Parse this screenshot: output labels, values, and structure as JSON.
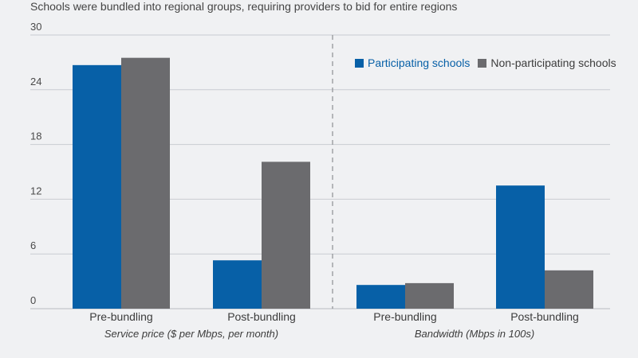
{
  "subtitle": "Schools were bundled into regional groups, requiring providers to bid for entire regions",
  "colors": {
    "participating": "#0760a7",
    "non_participating": "#6b6b6e",
    "grid": "#c9ccd1",
    "background": "#f0f1f3"
  },
  "legend": {
    "position": "top-right",
    "items": [
      {
        "label": "Participating schools",
        "color": "#0760a7"
      },
      {
        "label": "Non-participating schools",
        "color": "#6b6b6e"
      }
    ]
  },
  "chart_data": {
    "type": "bar",
    "ylim": [
      0,
      30
    ],
    "yticks": [
      0,
      6,
      12,
      18,
      24,
      30
    ],
    "grid": true,
    "groups": [
      {
        "label": "Service price ($ per Mbps, per month)",
        "categories": [
          "Pre-bundling",
          "Post-bundling"
        ],
        "series": [
          {
            "name": "Participating schools",
            "values": [
              26.7,
              5.3
            ]
          },
          {
            "name": "Non-participating schools",
            "values": [
              27.5,
              16.1
            ]
          }
        ]
      },
      {
        "label": "Bandwidth (Mbps in 100s)",
        "categories": [
          "Pre-bundling",
          "Post-bundling"
        ],
        "series": [
          {
            "name": "Participating schools",
            "values": [
              2.6,
              13.5
            ]
          },
          {
            "name": "Non-participating schools",
            "values": [
              2.8,
              4.2
            ]
          }
        ]
      }
    ]
  }
}
